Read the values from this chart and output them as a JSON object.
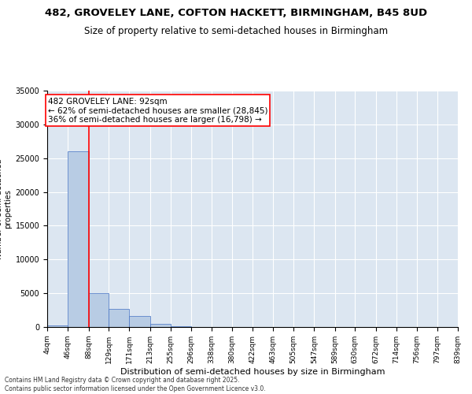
{
  "title": "482, GROVELEY LANE, COFTON HACKETT, BIRMINGHAM, B45 8UD",
  "subtitle": "Size of property relative to semi-detached houses in Birmingham",
  "xlabel": "Distribution of semi-detached houses by size in Birmingham",
  "ylabel": "Number of semi-detached\nproperties",
  "footer1": "Contains HM Land Registry data © Crown copyright and database right 2025.",
  "footer2": "Contains public sector information licensed under the Open Government Licence v3.0.",
  "annotation_line1": "482 GROVELEY LANE: 92sqm",
  "annotation_line2": "← 62% of semi-detached houses are smaller (28,845)",
  "annotation_line3": "36% of semi-detached houses are larger (16,798) →",
  "property_size": 92,
  "bar_edges": [
    4,
    46,
    88,
    129,
    171,
    213,
    255,
    296,
    338,
    380,
    422,
    463,
    505,
    547,
    589,
    630,
    672,
    714,
    756,
    797,
    839
  ],
  "bar_heights": [
    200,
    26000,
    5000,
    2700,
    1600,
    500,
    100,
    20,
    10,
    5,
    3,
    2,
    1,
    1,
    1,
    0,
    0,
    0,
    0,
    0
  ],
  "tick_labels": [
    "4sqm",
    "46sqm",
    "88sqm",
    "129sqm",
    "171sqm",
    "213sqm",
    "255sqm",
    "296sqm",
    "338sqm",
    "380sqm",
    "422sqm",
    "463sqm",
    "505sqm",
    "547sqm",
    "589sqm",
    "630sqm",
    "672sqm",
    "714sqm",
    "756sqm",
    "797sqm",
    "839sqm"
  ],
  "ylim": [
    0,
    35000
  ],
  "yticks": [
    0,
    5000,
    10000,
    15000,
    20000,
    25000,
    30000,
    35000
  ],
  "bar_color": "#b8cce4",
  "bar_edgecolor": "#4472c4",
  "vline_color": "#ff0000",
  "vline_x": 88,
  "bg_color": "#dce6f1",
  "title_fontsize": 9.5,
  "subtitle_fontsize": 8.5,
  "annotation_fontsize": 7.5,
  "ylabel_fontsize": 7,
  "xlabel_fontsize": 8,
  "footer_fontsize": 5.5,
  "tick_fontsize": 6.5,
  "ytick_fontsize": 7
}
